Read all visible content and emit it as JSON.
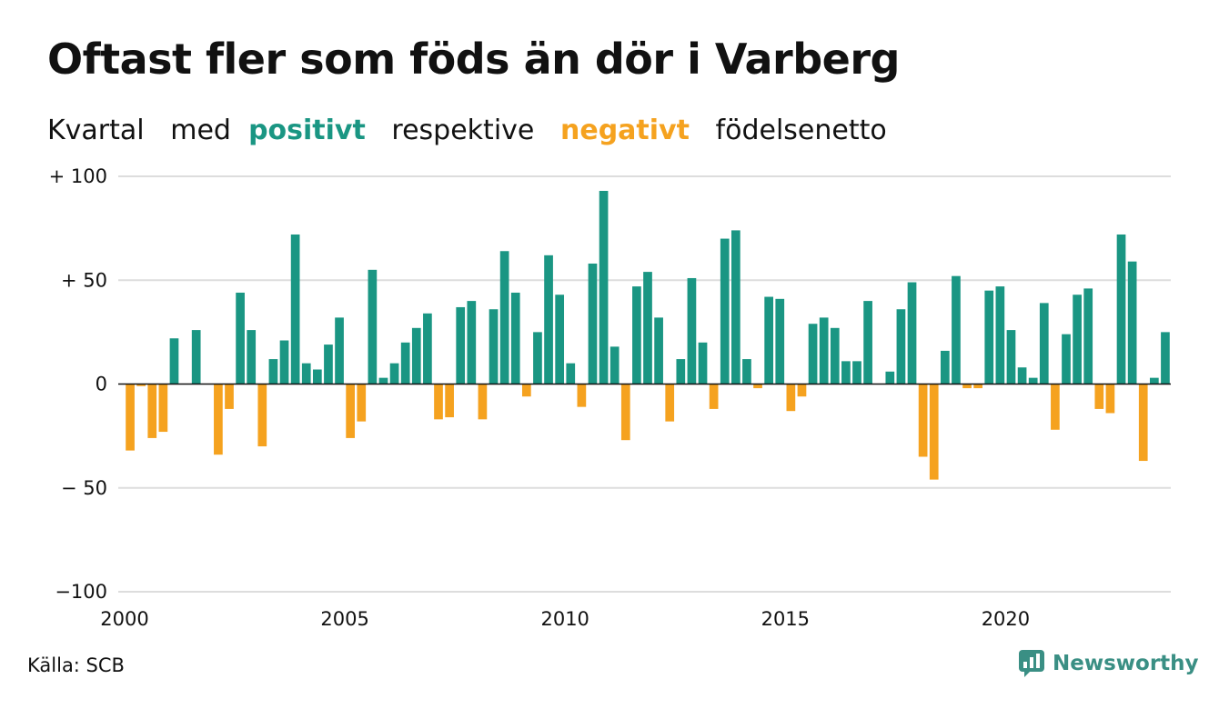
{
  "title": "Oftast fler som föds än dör i Varberg",
  "subtitle": {
    "w1": "Kvartal",
    "w2": "med",
    "w3": "positivt",
    "w4": "respektive",
    "w5": "negativt",
    "w6": "födelsenetto"
  },
  "source": "Källa: SCB",
  "brand": {
    "name": "Newsworthy",
    "icon": "newsworthy-chart-bubble-icon"
  },
  "colors": {
    "positive": "#1a9683",
    "negative": "#f5a21f",
    "grid": "#dddddd",
    "baseline": "#111111"
  },
  "chart_data": {
    "type": "bar",
    "grid": true,
    "ylim": [
      -100,
      100
    ],
    "xlim": [
      2000,
      2023.75
    ],
    "y_ticks": [
      100,
      50,
      0,
      -50,
      -100
    ],
    "y_tick_labels": [
      "+ 100",
      "+  50",
      "0",
      "− 50",
      "−100"
    ],
    "x_ticks": [
      2000,
      2005,
      2010,
      2015,
      2020
    ],
    "x_tick_labels": [
      "2000",
      "2005",
      "2010",
      "2015",
      "2020"
    ],
    "series": [
      {
        "start": "2000 Q1",
        "values": [
          -32,
          -1,
          -26,
          -23,
          22,
          0,
          26,
          0,
          -34,
          -12,
          44,
          26,
          -30,
          12,
          21,
          72,
          10,
          7,
          19,
          32,
          -26,
          -18,
          55,
          3,
          10,
          20,
          27,
          34,
          -17,
          -16,
          37,
          40,
          -17,
          36,
          64,
          44,
          -6,
          25,
          62,
          43,
          10,
          -11,
          58,
          93,
          18,
          -27,
          47,
          54,
          32,
          -18,
          12,
          51,
          20,
          -12,
          70,
          74,
          12,
          -2,
          42,
          41,
          -13,
          -6,
          29,
          32,
          27,
          11,
          11,
          40,
          0,
          6,
          36,
          49,
          -35,
          -46,
          16,
          52,
          -2,
          -2,
          45,
          47,
          26,
          8,
          3,
          39,
          -22,
          24,
          43,
          46,
          -12,
          -14,
          72,
          59,
          -37,
          3,
          25
        ]
      }
    ]
  }
}
